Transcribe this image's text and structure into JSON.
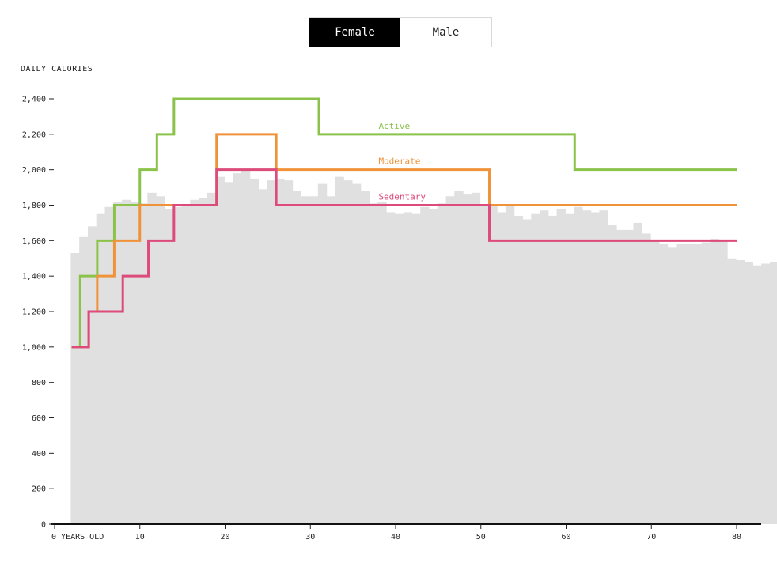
{
  "toggle": {
    "options": [
      {
        "label": "Female",
        "active": true
      },
      {
        "label": "Male",
        "active": false
      }
    ]
  },
  "chart_data": {
    "type": "line",
    "ylabel": "DAILY CALORIES",
    "xlabel": "",
    "x_axis_first_label": "0 YEARS OLD",
    "xlim": [
      0,
      80
    ],
    "ylim": [
      0,
      2400
    ],
    "x_ticks": [
      0,
      10,
      20,
      30,
      40,
      50,
      60,
      70,
      80
    ],
    "x_tick_labels": [
      "0 YEARS OLD",
      "10",
      "20",
      "30",
      "40",
      "50",
      "60",
      "70",
      "80"
    ],
    "y_ticks": [
      0,
      200,
      400,
      600,
      800,
      1000,
      1200,
      1400,
      1600,
      1800,
      2000,
      2200,
      2400
    ],
    "y_tick_labels": [
      "0",
      "200",
      "400",
      "600",
      "800",
      "1,000",
      "1,200",
      "1,400",
      "1,600",
      "1,800",
      "2,000",
      "2,200",
      "2,400"
    ],
    "background_histogram": {
      "color": "#e0e0e0",
      "x_start": 1,
      "bin_width": 1,
      "values": [
        1530,
        1620,
        1680,
        1750,
        1790,
        1820,
        1830,
        1820,
        1810,
        1870,
        1850,
        1780,
        1790,
        1800,
        1830,
        1840,
        1870,
        1960,
        1930,
        1980,
        2000,
        1950,
        1890,
        1940,
        1950,
        1940,
        1880,
        1850,
        1850,
        1920,
        1850,
        1960,
        1940,
        1920,
        1880,
        1810,
        1820,
        1760,
        1750,
        1760,
        1750,
        1790,
        1780,
        1810,
        1850,
        1880,
        1860,
        1870,
        1800,
        1800,
        1760,
        1800,
        1740,
        1720,
        1750,
        1770,
        1740,
        1780,
        1750,
        1790,
        1770,
        1760,
        1770,
        1690,
        1660,
        1660,
        1700,
        1640,
        1600,
        1580,
        1560,
        1580,
        1580,
        1580,
        1590,
        1610,
        1600,
        1500,
        1490,
        1480,
        1460,
        1470,
        1480
      ]
    },
    "series": [
      {
        "name": "Active",
        "color": "#8bc34a",
        "label_x": 38,
        "label_y": 2200,
        "steps": [
          [
            2,
            1000
          ],
          [
            3,
            1400
          ],
          [
            5,
            1600
          ],
          [
            7,
            1800
          ],
          [
            10,
            2000
          ],
          [
            12,
            2200
          ],
          [
            14,
            2400
          ],
          [
            31,
            2200
          ],
          [
            61,
            2000
          ],
          [
            80,
            2000
          ]
        ]
      },
      {
        "name": "Moderate",
        "color": "#f0923a",
        "label_x": 38,
        "label_y": 2000,
        "steps": [
          [
            2,
            1000
          ],
          [
            4,
            1200
          ],
          [
            5,
            1400
          ],
          [
            7,
            1600
          ],
          [
            10,
            1800
          ],
          [
            12,
            1800
          ],
          [
            19,
            2200
          ],
          [
            26,
            2000
          ],
          [
            51,
            1800
          ],
          [
            80,
            1800
          ]
        ]
      },
      {
        "name": "Sedentary",
        "color": "#dc4b7a",
        "label_x": 38,
        "label_y": 1800,
        "steps": [
          [
            2,
            1000
          ],
          [
            4,
            1200
          ],
          [
            8,
            1400
          ],
          [
            11,
            1600
          ],
          [
            14,
            1800
          ],
          [
            19,
            2000
          ],
          [
            26,
            1800
          ],
          [
            51,
            1600
          ],
          [
            80,
            1600
          ]
        ]
      }
    ]
  }
}
